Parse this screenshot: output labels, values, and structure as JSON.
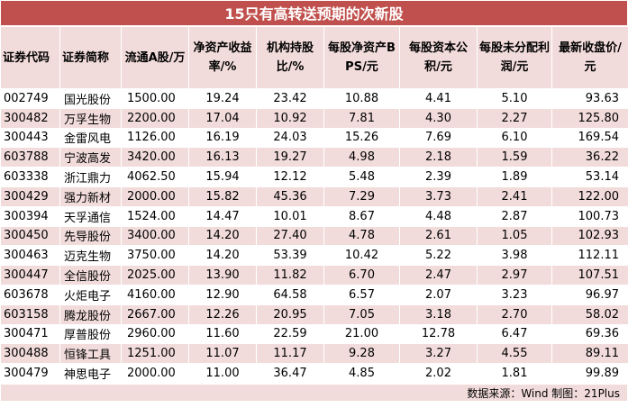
{
  "title": "15只有高转送预期的次新股",
  "headers": [
    "证券代码",
    "证券简称",
    "流通A股/万",
    "净资产收益率/%",
    "机构持股比/%",
    "每股净资产BPS/元",
    "每股资本公积/元",
    "每股未分配利润/元",
    "最新收盘价/元"
  ],
  "rows": [
    [
      "002749",
      "国光股份",
      "1500.00",
      "19.24",
      "23.42",
      "10.88",
      "4.41",
      "5.10",
      "93.63"
    ],
    [
      "300482",
      "万孚生物",
      "2200.00",
      "17.04",
      "10.92",
      "7.81",
      "4.30",
      "2.27",
      "125.80"
    ],
    [
      "300443",
      "金雷风电",
      "1126.00",
      "16.19",
      "24.03",
      "15.26",
      "7.69",
      "6.10",
      "169.54"
    ],
    [
      "603788",
      "宁波高发",
      "3420.00",
      "16.13",
      "19.27",
      "4.98",
      "2.18",
      "1.59",
      "36.22"
    ],
    [
      "603338",
      "浙江鼎力",
      "4062.50",
      "15.94",
      "12.12",
      "5.48",
      "2.39",
      "1.89",
      "53.14"
    ],
    [
      "300429",
      "强力新材",
      "2000.00",
      "15.82",
      "45.36",
      "7.29",
      "3.73",
      "2.41",
      "122.00"
    ],
    [
      "300394",
      "天孚通信",
      "1524.00",
      "14.47",
      "10.01",
      "8.67",
      "4.48",
      "2.87",
      "100.73"
    ],
    [
      "300450",
      "先导股份",
      "3400.00",
      "14.20",
      "27.40",
      "4.78",
      "2.61",
      "1.05",
      "102.93"
    ],
    [
      "300463",
      "迈克生物",
      "3750.00",
      "14.20",
      "53.39",
      "10.42",
      "5.22",
      "3.98",
      "112.11"
    ],
    [
      "300447",
      "全信股份",
      "2025.00",
      "13.90",
      "11.82",
      "6.70",
      "2.47",
      "2.97",
      "107.51"
    ],
    [
      "603678",
      "火炬电子",
      "4160.00",
      "12.90",
      "64.58",
      "6.57",
      "2.07",
      "3.23",
      "96.97"
    ],
    [
      "603158",
      "腾龙股份",
      "2667.00",
      "12.26",
      "20.95",
      "7.05",
      "3.18",
      "2.70",
      "58.02"
    ],
    [
      "300471",
      "厚普股份",
      "2960.00",
      "11.60",
      "22.59",
      "21.00",
      "12.78",
      "6.47",
      "69.36"
    ],
    [
      "300488",
      "恒锋工具",
      "1251.00",
      "11.07",
      "11.17",
      "9.28",
      "3.27",
      "4.55",
      "89.11"
    ],
    [
      "300479",
      "神思电子",
      "2000.00",
      "11.00",
      "36.47",
      "4.85",
      "2.02",
      "1.81",
      "99.89"
    ]
  ],
  "footer": "数据来源：Wind 制图：21Plus",
  "colors": {
    "title_bg": "#c0504d",
    "header_bg": "#f2dcdb",
    "stripe_bg": "#f2dcdb",
    "plain_bg": "#ffffff"
  }
}
